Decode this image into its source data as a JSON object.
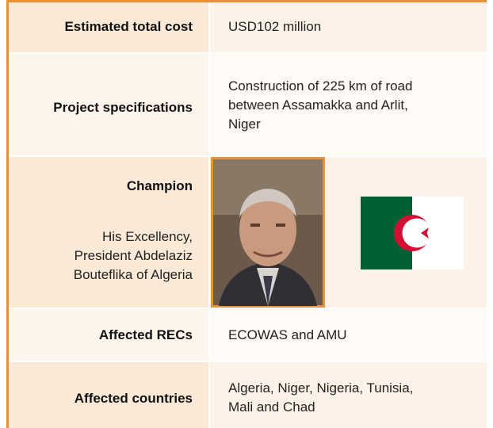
{
  "table": {
    "rows": [
      {
        "label": "Estimated total cost",
        "value": [
          "USD102 million"
        ]
      },
      {
        "label": "Project specifications",
        "value": [
          "Construction of 225 km of road",
          "between Assamakka and Arlit,",
          "Niger"
        ]
      },
      {
        "label": "Champion",
        "description": [
          "His Excellency,",
          "President Abdelaziz",
          "Bouteflika of Algeria"
        ]
      },
      {
        "label": "Affected RECs",
        "value": [
          "ECOWAS and AMU"
        ]
      },
      {
        "label": "Affected countries",
        "value": [
          "Algeria, Niger, Nigeria, Tunisia,",
          "Mali and Chad"
        ]
      }
    ]
  }
}
